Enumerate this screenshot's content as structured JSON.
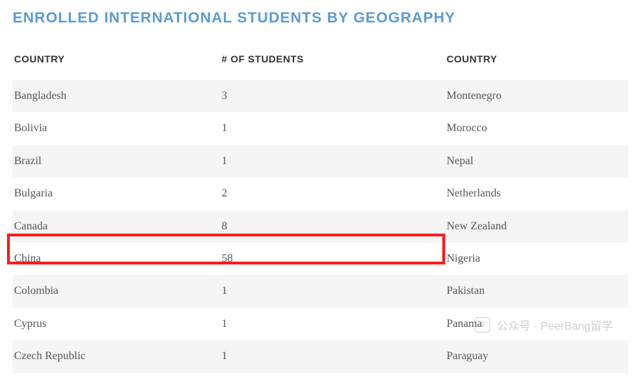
{
  "title": "ENROLLED INTERNATIONAL STUDENTS BY GEOGRAPHY",
  "colors": {
    "title": "#5b9bd5",
    "header_text": "#333333",
    "cell_text": "#555555",
    "row_odd_bg": "#f5f5f5",
    "row_even_bg": "#ffffff",
    "highlight_border": "#ff1a1a",
    "watermark_text": "#888888"
  },
  "typography": {
    "title_fontsize": 21,
    "header_fontsize": 14,
    "cell_fontsize": 16
  },
  "left_table": {
    "columns": [
      "COUNTRY",
      "# OF STUDENTS"
    ],
    "rows": [
      {
        "country": "Bangladesh",
        "students": "3"
      },
      {
        "country": "Bolivia",
        "students": "1"
      },
      {
        "country": "Brazil",
        "students": "1"
      },
      {
        "country": "Bulgaria",
        "students": "2"
      },
      {
        "country": "Canada",
        "students": "8"
      },
      {
        "country": "China",
        "students": "58"
      },
      {
        "country": "Colombia",
        "students": "1"
      },
      {
        "country": "Cyprus",
        "students": "1"
      },
      {
        "country": "Czech Republic",
        "students": "1"
      }
    ],
    "highlight_row_index": 5
  },
  "right_table": {
    "columns": [
      "COUNTRY"
    ],
    "rows": [
      {
        "country": "Montenegro"
      },
      {
        "country": "Morocco"
      },
      {
        "country": "Nepal"
      },
      {
        "country": "Netherlands"
      },
      {
        "country": "New Zealand"
      },
      {
        "country": "Nigeria"
      },
      {
        "country": "Pakistan"
      },
      {
        "country": "Panama"
      },
      {
        "country": "Paraguay"
      }
    ]
  },
  "watermark": {
    "icon_text": "S",
    "label": "公众号 · PeerBang留学"
  }
}
